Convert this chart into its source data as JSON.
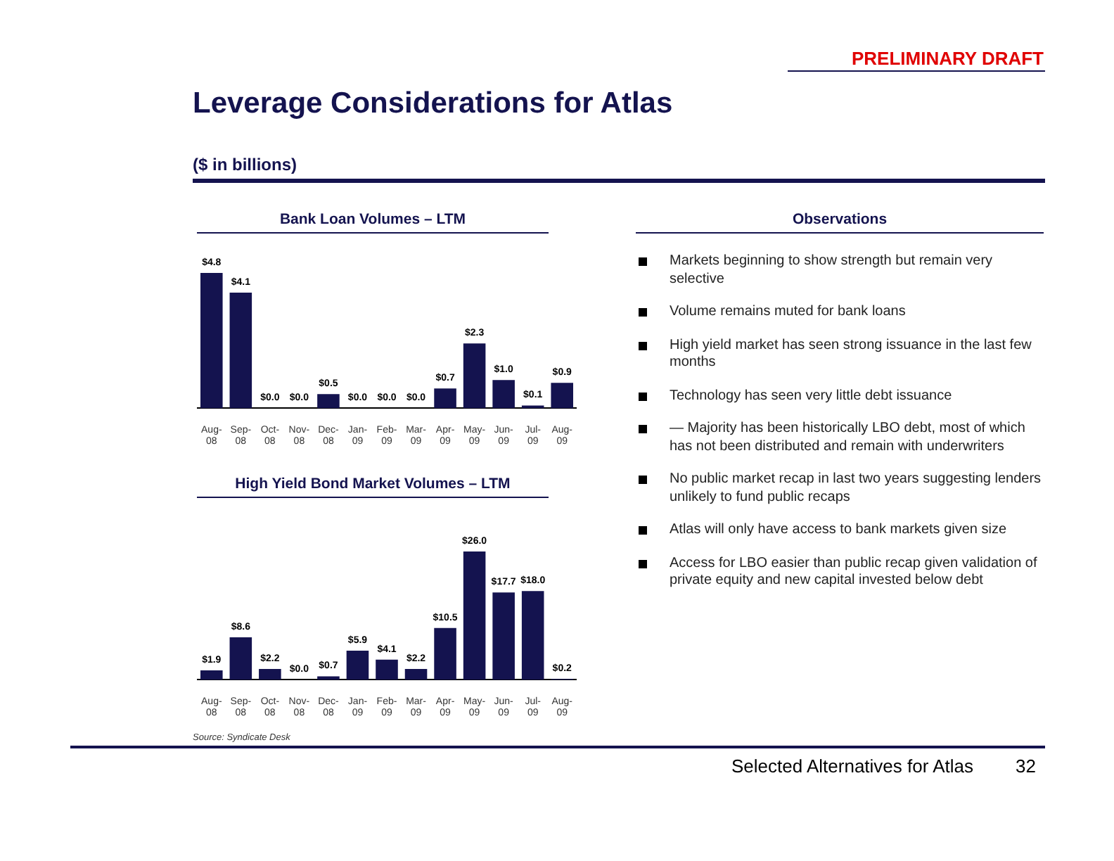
{
  "chart_data": [
    {
      "type": "other",
      "title": "Leverage Considerations for Atlas",
      "subtitle": "($ in billions)",
      "annotations": [
        "PRELIMINARY DRAFT",
        "Source: Syndicate Desk",
        "Selected Alternatives for Atlas",
        "32"
      ]
    },
    {
      "type": "bar",
      "title": "Bank Loan Volumes – LTM",
      "categories": [
        "Aug-08",
        "Sep-08",
        "Oct-08",
        "Nov-08",
        "Dec-08",
        "Jan-09",
        "Feb-09",
        "Mar-09",
        "Apr-09",
        "May-09",
        "Jun-09",
        "Jul-09",
        "Aug-09"
      ],
      "color": "#14134f",
      "values": [
        4.8,
        4.1,
        0.0,
        0.0,
        0.5,
        0.0,
        0.0,
        0.0,
        0.7,
        2.3,
        1.0,
        0.1,
        0.9
      ],
      "value_labels": [
        "$4.8",
        "$4.1",
        "$0.0",
        "$0.0",
        "$0.5",
        "$0.0",
        "$0.0",
        "$0.0",
        "$0.7",
        "$2.3",
        "$1.0",
        "$0.1",
        "$0.9"
      ]
    },
    {
      "type": "bar",
      "title": "High Yield Bond Market Volumes – LTM",
      "categories": [
        "Aug-08",
        "Sep-08",
        "Oct-08",
        "Nov-08",
        "Dec-08",
        "Jan-09",
        "Feb-09",
        "Mar-09",
        "Apr-09",
        "May-09",
        "Jun-09",
        "Jul-09",
        "Aug-09"
      ],
      "color": "#14134f",
      "values": [
        1.9,
        8.6,
        2.2,
        0.0,
        0.7,
        5.9,
        4.1,
        2.2,
        10.5,
        26.0,
        17.7,
        18.0,
        0.2
      ],
      "value_labels": [
        "$1.9",
        "$8.6",
        "$2.2",
        "$0.0",
        "$0.7",
        "$5.9",
        "$4.1",
        "$2.2",
        "$10.5",
        "$26.0",
        "$17.7",
        "$18.0",
        "$0.2"
      ]
    },
    {
      "type": "other",
      "title": "Observations",
      "annotations": [
        "Markets beginning to show strength but remain very selective",
        "Volume remains muted for bank loans",
        "High yield market has seen strong issuance in the last few months",
        "Technology has seen very little debt issuance",
        "— Majority has been historically LBO debt, most of which has not been distributed and remain with underwriters",
        "No public market recap in last two years suggesting lenders unlikely to fund public recaps",
        "Atlas will only have access to bank markets given size",
        "Access for LBO easier than public recap given validation of private equity and new capital invested below debt"
      ]
    }
  ]
}
